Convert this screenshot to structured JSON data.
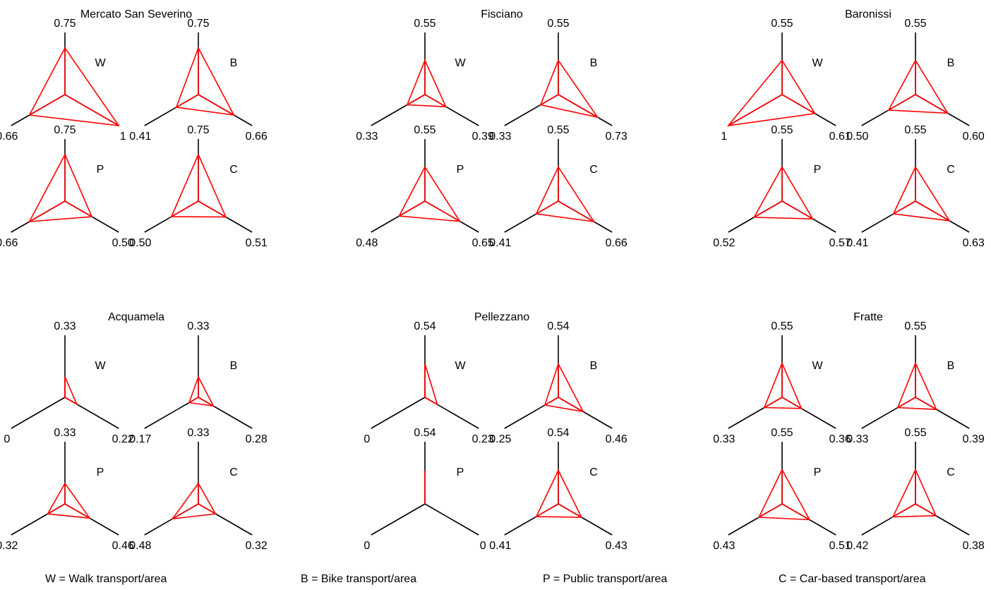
{
  "colors": {
    "axis": "#000000",
    "triangle": "#ff0000",
    "background": "#ffffff"
  },
  "chart_data": {
    "type": "radar",
    "axis_max": 1,
    "axes_order": [
      "top",
      "bottom-left",
      "bottom-right"
    ],
    "mode_labels": [
      "W",
      "B",
      "P",
      "C"
    ],
    "towns": [
      {
        "name": "Mercato San Severino",
        "modes": [
          {
            "mode": "W",
            "values": [
              0.75,
              0.66,
              1
            ]
          },
          {
            "mode": "B",
            "values": [
              0.75,
              0.41,
              0.66
            ]
          },
          {
            "mode": "P",
            "values": [
              0.75,
              0.66,
              0.5
            ]
          },
          {
            "mode": "C",
            "values": [
              0.75,
              0.5,
              0.51
            ]
          }
        ]
      },
      {
        "name": "Fisciano",
        "modes": [
          {
            "mode": "W",
            "values": [
              0.55,
              0.33,
              0.39
            ]
          },
          {
            "mode": "B",
            "values": [
              0.55,
              0.33,
              0.73
            ]
          },
          {
            "mode": "P",
            "values": [
              0.55,
              0.48,
              0.65
            ]
          },
          {
            "mode": "C",
            "values": [
              0.55,
              0.41,
              0.66
            ]
          }
        ]
      },
      {
        "name": "Baronissi",
        "modes": [
          {
            "mode": "W",
            "values": [
              0.55,
              1,
              0.61
            ]
          },
          {
            "mode": "B",
            "values": [
              0.55,
              0.5,
              0.6
            ]
          },
          {
            "mode": "P",
            "values": [
              0.55,
              0.52,
              0.57
            ]
          },
          {
            "mode": "C",
            "values": [
              0.55,
              0.41,
              0.63
            ]
          }
        ]
      },
      {
        "name": "Acquamela",
        "modes": [
          {
            "mode": "W",
            "values": [
              0.33,
              0,
              0.22
            ]
          },
          {
            "mode": "B",
            "values": [
              0.33,
              0.17,
              0.28
            ]
          },
          {
            "mode": "P",
            "values": [
              0.33,
              0.32,
              0.46
            ]
          },
          {
            "mode": "C",
            "values": [
              0.33,
              0.48,
              0.32
            ]
          }
        ]
      },
      {
        "name": "Pellezzano",
        "modes": [
          {
            "mode": "W",
            "values": [
              0.54,
              0,
              0.23
            ]
          },
          {
            "mode": "B",
            "values": [
              0.54,
              0.25,
              0.46
            ]
          },
          {
            "mode": "P",
            "values": [
              0.54,
              0,
              0
            ]
          },
          {
            "mode": "C",
            "values": [
              0.54,
              0.41,
              0.43
            ]
          }
        ]
      },
      {
        "name": "Fratte",
        "modes": [
          {
            "mode": "W",
            "values": [
              0.55,
              0.33,
              0.36
            ]
          },
          {
            "mode": "B",
            "values": [
              0.55,
              0.33,
              0.39
            ]
          },
          {
            "mode": "P",
            "values": [
              0.55,
              0.43,
              0.51
            ]
          },
          {
            "mode": "C",
            "values": [
              0.55,
              0.42,
              0.38
            ]
          }
        ]
      }
    ],
    "value_labels": {
      "Mercato San Severino": [
        [
          "0.75",
          "0.66",
          "1"
        ],
        [
          "0.75",
          "0.41",
          "0.66"
        ],
        [
          "0.75",
          "0.66",
          "0.50"
        ],
        [
          "0.75",
          "0.50",
          "0.51"
        ]
      ],
      "Fisciano": [
        [
          "0.55",
          "0.33",
          "0.39"
        ],
        [
          "0.55",
          "0.33",
          "0.73"
        ],
        [
          "0.55",
          "0.48",
          "0.65"
        ],
        [
          "0.55",
          "0.41",
          "0.66"
        ]
      ],
      "Baronissi": [
        [
          "0.55",
          "1",
          "0.61"
        ],
        [
          "0.55",
          "0.50",
          "0.60"
        ],
        [
          "0.55",
          "0.52",
          "0.57"
        ],
        [
          "0.55",
          "0.41",
          "0.63"
        ]
      ],
      "Acquamela": [
        [
          "0.33",
          "0",
          "0.22"
        ],
        [
          "0.33",
          "0.17",
          "0.28"
        ],
        [
          "0.33",
          "0.32",
          "0.46"
        ],
        [
          "0.33",
          "0.48",
          "0.32"
        ]
      ],
      "Pellezzano": [
        [
          "0.54",
          "0",
          "0.23"
        ],
        [
          "0.54",
          "0.25",
          "0.46"
        ],
        [
          "0.54",
          "0",
          "0"
        ],
        [
          "0.54",
          "0.41",
          "0.43"
        ]
      ],
      "Fratte": [
        [
          "0.55",
          "0.33",
          "0.36"
        ],
        [
          "0.55",
          "0.33",
          "0.39"
        ],
        [
          "0.55",
          "0.43",
          "0.51"
        ],
        [
          "0.55",
          "0.42",
          "0.38"
        ]
      ]
    }
  },
  "legend": {
    "w": "W = Walk transport/area",
    "b": "B = Bike transport/area",
    "p": "P = Public transport/area",
    "c": "C = Car-based transport/area"
  }
}
